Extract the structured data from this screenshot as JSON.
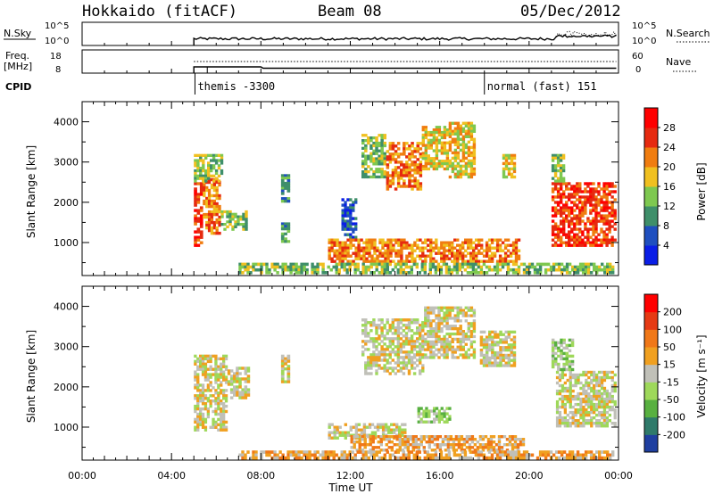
{
  "header": {
    "title": "Hokkaido (fitACF)",
    "beam": "Beam 08",
    "date": "05/Dec/2012"
  },
  "top_panels": {
    "nsky_label": "N.Sky",
    "nsky_ticks": [
      "10^5",
      "10^0"
    ],
    "nsearch_label": "N.Search",
    "nsearch_ticks": [
      "10^5",
      "10^0"
    ],
    "freq_label_1": "Freq.",
    "freq_label_2": "[MHz]",
    "freq_ticks": [
      "18",
      "8"
    ],
    "nave_label": "Nave",
    "nave_ticks": [
      "60",
      "0"
    ],
    "cpid_label": "CPID",
    "cpid_entries": [
      {
        "time": 5.05,
        "label": "themis -3300"
      },
      {
        "time": 18.0,
        "label": "normal (fast) 151"
      }
    ]
  },
  "chart_data": [
    {
      "type": "heatmap",
      "name": "power",
      "ylabel": "Slant Range [km]",
      "xlim": [
        0,
        24
      ],
      "ylim": [
        180,
        4500
      ],
      "yticks": [
        "1000",
        "2000",
        "3000",
        "4000"
      ],
      "colorbar": {
        "label": "Power [dB]",
        "ticks": [
          "4",
          "8",
          "12",
          "16",
          "20",
          "24",
          "28"
        ],
        "colors": [
          "#0a1ee6",
          "#1f4fbf",
          "#3f8f6a",
          "#7ec850",
          "#f0c020",
          "#f07d10",
          "#e62a10",
          "#ff0000"
        ]
      },
      "regions": [
        {
          "t0": 5.0,
          "t1": 5.4,
          "r0": 900,
          "r1": 2500,
          "level": 6
        },
        {
          "t0": 5.4,
          "t1": 6.2,
          "r0": 1200,
          "r1": 2600,
          "level": 5
        },
        {
          "t0": 5.0,
          "t1": 6.3,
          "r0": 2500,
          "r1": 3200,
          "level": 3
        },
        {
          "t0": 6.2,
          "t1": 7.4,
          "r0": 1300,
          "r1": 1800,
          "level": 3
        },
        {
          "t0": 8.9,
          "t1": 9.3,
          "r0": 2000,
          "r1": 2700,
          "level": 2
        },
        {
          "t0": 8.9,
          "t1": 9.3,
          "r0": 1000,
          "r1": 1500,
          "level": 2
        },
        {
          "t0": 11.6,
          "t1": 12.3,
          "r0": 1100,
          "r1": 2100,
          "level": 1
        },
        {
          "t0": 12.5,
          "t1": 13.6,
          "r0": 2600,
          "r1": 3700,
          "level": 3
        },
        {
          "t0": 13.6,
          "t1": 15.2,
          "r0": 2300,
          "r1": 3500,
          "level": 5
        },
        {
          "t0": 15.2,
          "t1": 16.4,
          "r0": 2800,
          "r1": 3900,
          "level": 4
        },
        {
          "t0": 16.4,
          "t1": 17.6,
          "r0": 2600,
          "r1": 4000,
          "level": 4
        },
        {
          "t0": 18.8,
          "t1": 19.4,
          "r0": 2600,
          "r1": 3200,
          "level": 4
        },
        {
          "t0": 11.0,
          "t1": 19.6,
          "r0": 500,
          "r1": 1100,
          "level": 5
        },
        {
          "t0": 7.0,
          "t1": 23.8,
          "r0": 220,
          "r1": 500,
          "level": 3
        },
        {
          "t0": 21.0,
          "t1": 23.9,
          "r0": 900,
          "r1": 2500,
          "level": 6
        },
        {
          "t0": 21.0,
          "t1": 21.6,
          "r0": 2500,
          "r1": 3200,
          "level": 3
        }
      ]
    },
    {
      "type": "heatmap",
      "name": "velocity",
      "ylabel": "Slant Range [km]",
      "xlabel": "Time UT",
      "xlim": [
        0,
        24
      ],
      "ylim": [
        180,
        4500
      ],
      "xticks": [
        "00:00",
        "04:00",
        "08:00",
        "12:00",
        "16:00",
        "20:00",
        "00:00"
      ],
      "yticks": [
        "1000",
        "2000",
        "3000",
        "4000"
      ],
      "colorbar": {
        "label": "Velocity [m s⁻¹]",
        "ticks": [
          "200",
          "100",
          "50",
          "15",
          "-15",
          "-50",
          "-100",
          "-200"
        ],
        "colors": [
          "#1f3fa0",
          "#2f7a6a",
          "#58b040",
          "#9ed85a",
          "#c0c0b8",
          "#f0a020",
          "#f07818",
          "#e63a14",
          "#ff0000"
        ]
      },
      "regions": [
        {
          "t0": 5.0,
          "t1": 6.5,
          "r0": 900,
          "r1": 2800,
          "level": 4
        },
        {
          "t0": 6.5,
          "t1": 7.5,
          "r0": 1700,
          "r1": 2500,
          "level": 4
        },
        {
          "t0": 8.9,
          "t1": 9.3,
          "r0": 2100,
          "r1": 2800,
          "level": 4
        },
        {
          "t0": 12.5,
          "t1": 15.3,
          "r0": 2300,
          "r1": 3700,
          "level": 4
        },
        {
          "t0": 15.3,
          "t1": 17.6,
          "r0": 2700,
          "r1": 4000,
          "level": 4
        },
        {
          "t0": 17.8,
          "t1": 19.4,
          "r0": 2500,
          "r1": 3400,
          "level": 4
        },
        {
          "t0": 11.0,
          "t1": 14.5,
          "r0": 700,
          "r1": 1100,
          "level": 4
        },
        {
          "t0": 12.0,
          "t1": 19.8,
          "r0": 400,
          "r1": 800,
          "level": 5
        },
        {
          "t0": 7.0,
          "t1": 23.8,
          "r0": 200,
          "r1": 420,
          "level": 5
        },
        {
          "t0": 21.2,
          "t1": 23.9,
          "r0": 1000,
          "r1": 2400,
          "level": 4
        },
        {
          "t0": 21.0,
          "t1": 22.0,
          "r0": 2400,
          "r1": 3200,
          "level": 3
        },
        {
          "t0": 15.0,
          "t1": 16.5,
          "r0": 1100,
          "r1": 1500,
          "level": 3
        }
      ]
    }
  ]
}
